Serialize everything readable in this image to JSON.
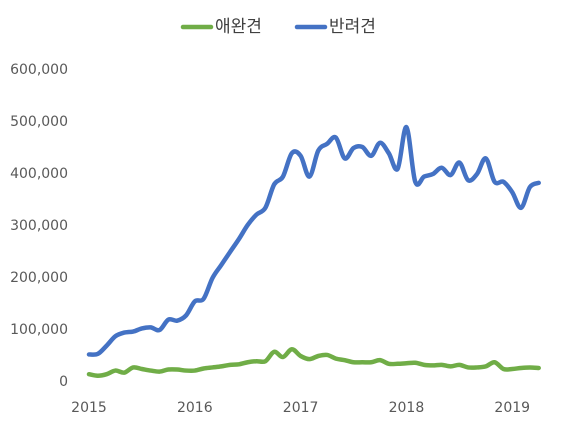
{
  "chart_data": {
    "type": "line",
    "x": [
      2015,
      2015.083,
      2015.167,
      2015.25,
      2015.333,
      2015.417,
      2015.5,
      2015.583,
      2015.667,
      2015.75,
      2015.833,
      2015.917,
      2016,
      2016.083,
      2016.167,
      2016.25,
      2016.333,
      2016.417,
      2016.5,
      2016.583,
      2016.667,
      2016.75,
      2016.833,
      2016.917,
      2017,
      2017.083,
      2017.167,
      2017.25,
      2017.333,
      2017.417,
      2017.5,
      2017.583,
      2017.667,
      2017.75,
      2017.833,
      2017.917,
      2018,
      2018.083,
      2018.167,
      2018.25,
      2018.333,
      2018.417,
      2018.5,
      2018.583,
      2018.667,
      2018.75,
      2018.833,
      2018.917,
      2019,
      2019.083,
      2019.167,
      2019.25
    ],
    "series": [
      {
        "name": "애완견",
        "color": "#70ad47",
        "values": [
          15000,
          12000,
          15000,
          22000,
          18000,
          28000,
          25000,
          22000,
          20000,
          24000,
          24000,
          22000,
          22000,
          26000,
          28000,
          30000,
          33000,
          34000,
          38000,
          40000,
          40000,
          58000,
          48000,
          63000,
          50000,
          44000,
          50000,
          52000,
          45000,
          42000,
          38000,
          38000,
          38000,
          42000,
          35000,
          35000,
          36000,
          37000,
          33000,
          32000,
          33000,
          30000,
          33000,
          28000,
          28000,
          30000,
          38000,
          25000,
          25000,
          27000,
          28000,
          27000
        ]
      },
      {
        "name": "반려견",
        "color": "#4472c4",
        "values": [
          53000,
          54000,
          70000,
          88000,
          95000,
          97000,
          103000,
          105000,
          100000,
          120000,
          118000,
          128000,
          155000,
          160000,
          200000,
          225000,
          250000,
          275000,
          302000,
          322000,
          335000,
          380000,
          395000,
          440000,
          435000,
          395000,
          445000,
          458000,
          470000,
          430000,
          450000,
          452000,
          435000,
          460000,
          440000,
          410000,
          490000,
          385000,
          395000,
          400000,
          412000,
          398000,
          422000,
          388000,
          400000,
          430000,
          385000,
          385000,
          365000,
          335000,
          375000,
          383000
        ]
      }
    ],
    "xlim": [
      2015,
      2019.3
    ],
    "xticks": [
      2015,
      2016,
      2017,
      2018,
      2019
    ],
    "ylim": [
      0,
      600000
    ],
    "yticks": [
      0,
      {
        "value": 100000,
        "label": "100,000"
      },
      {
        "value": 200000,
        "label": "200,000"
      },
      {
        "value": 300000,
        "label": "300,000"
      },
      {
        "value": 400000,
        "label": "400,000"
      },
      {
        "value": 500000,
        "label": "500,000"
      },
      {
        "value": 600000,
        "label": "600,000"
      }
    ],
    "legend": "top",
    "grid": false
  }
}
